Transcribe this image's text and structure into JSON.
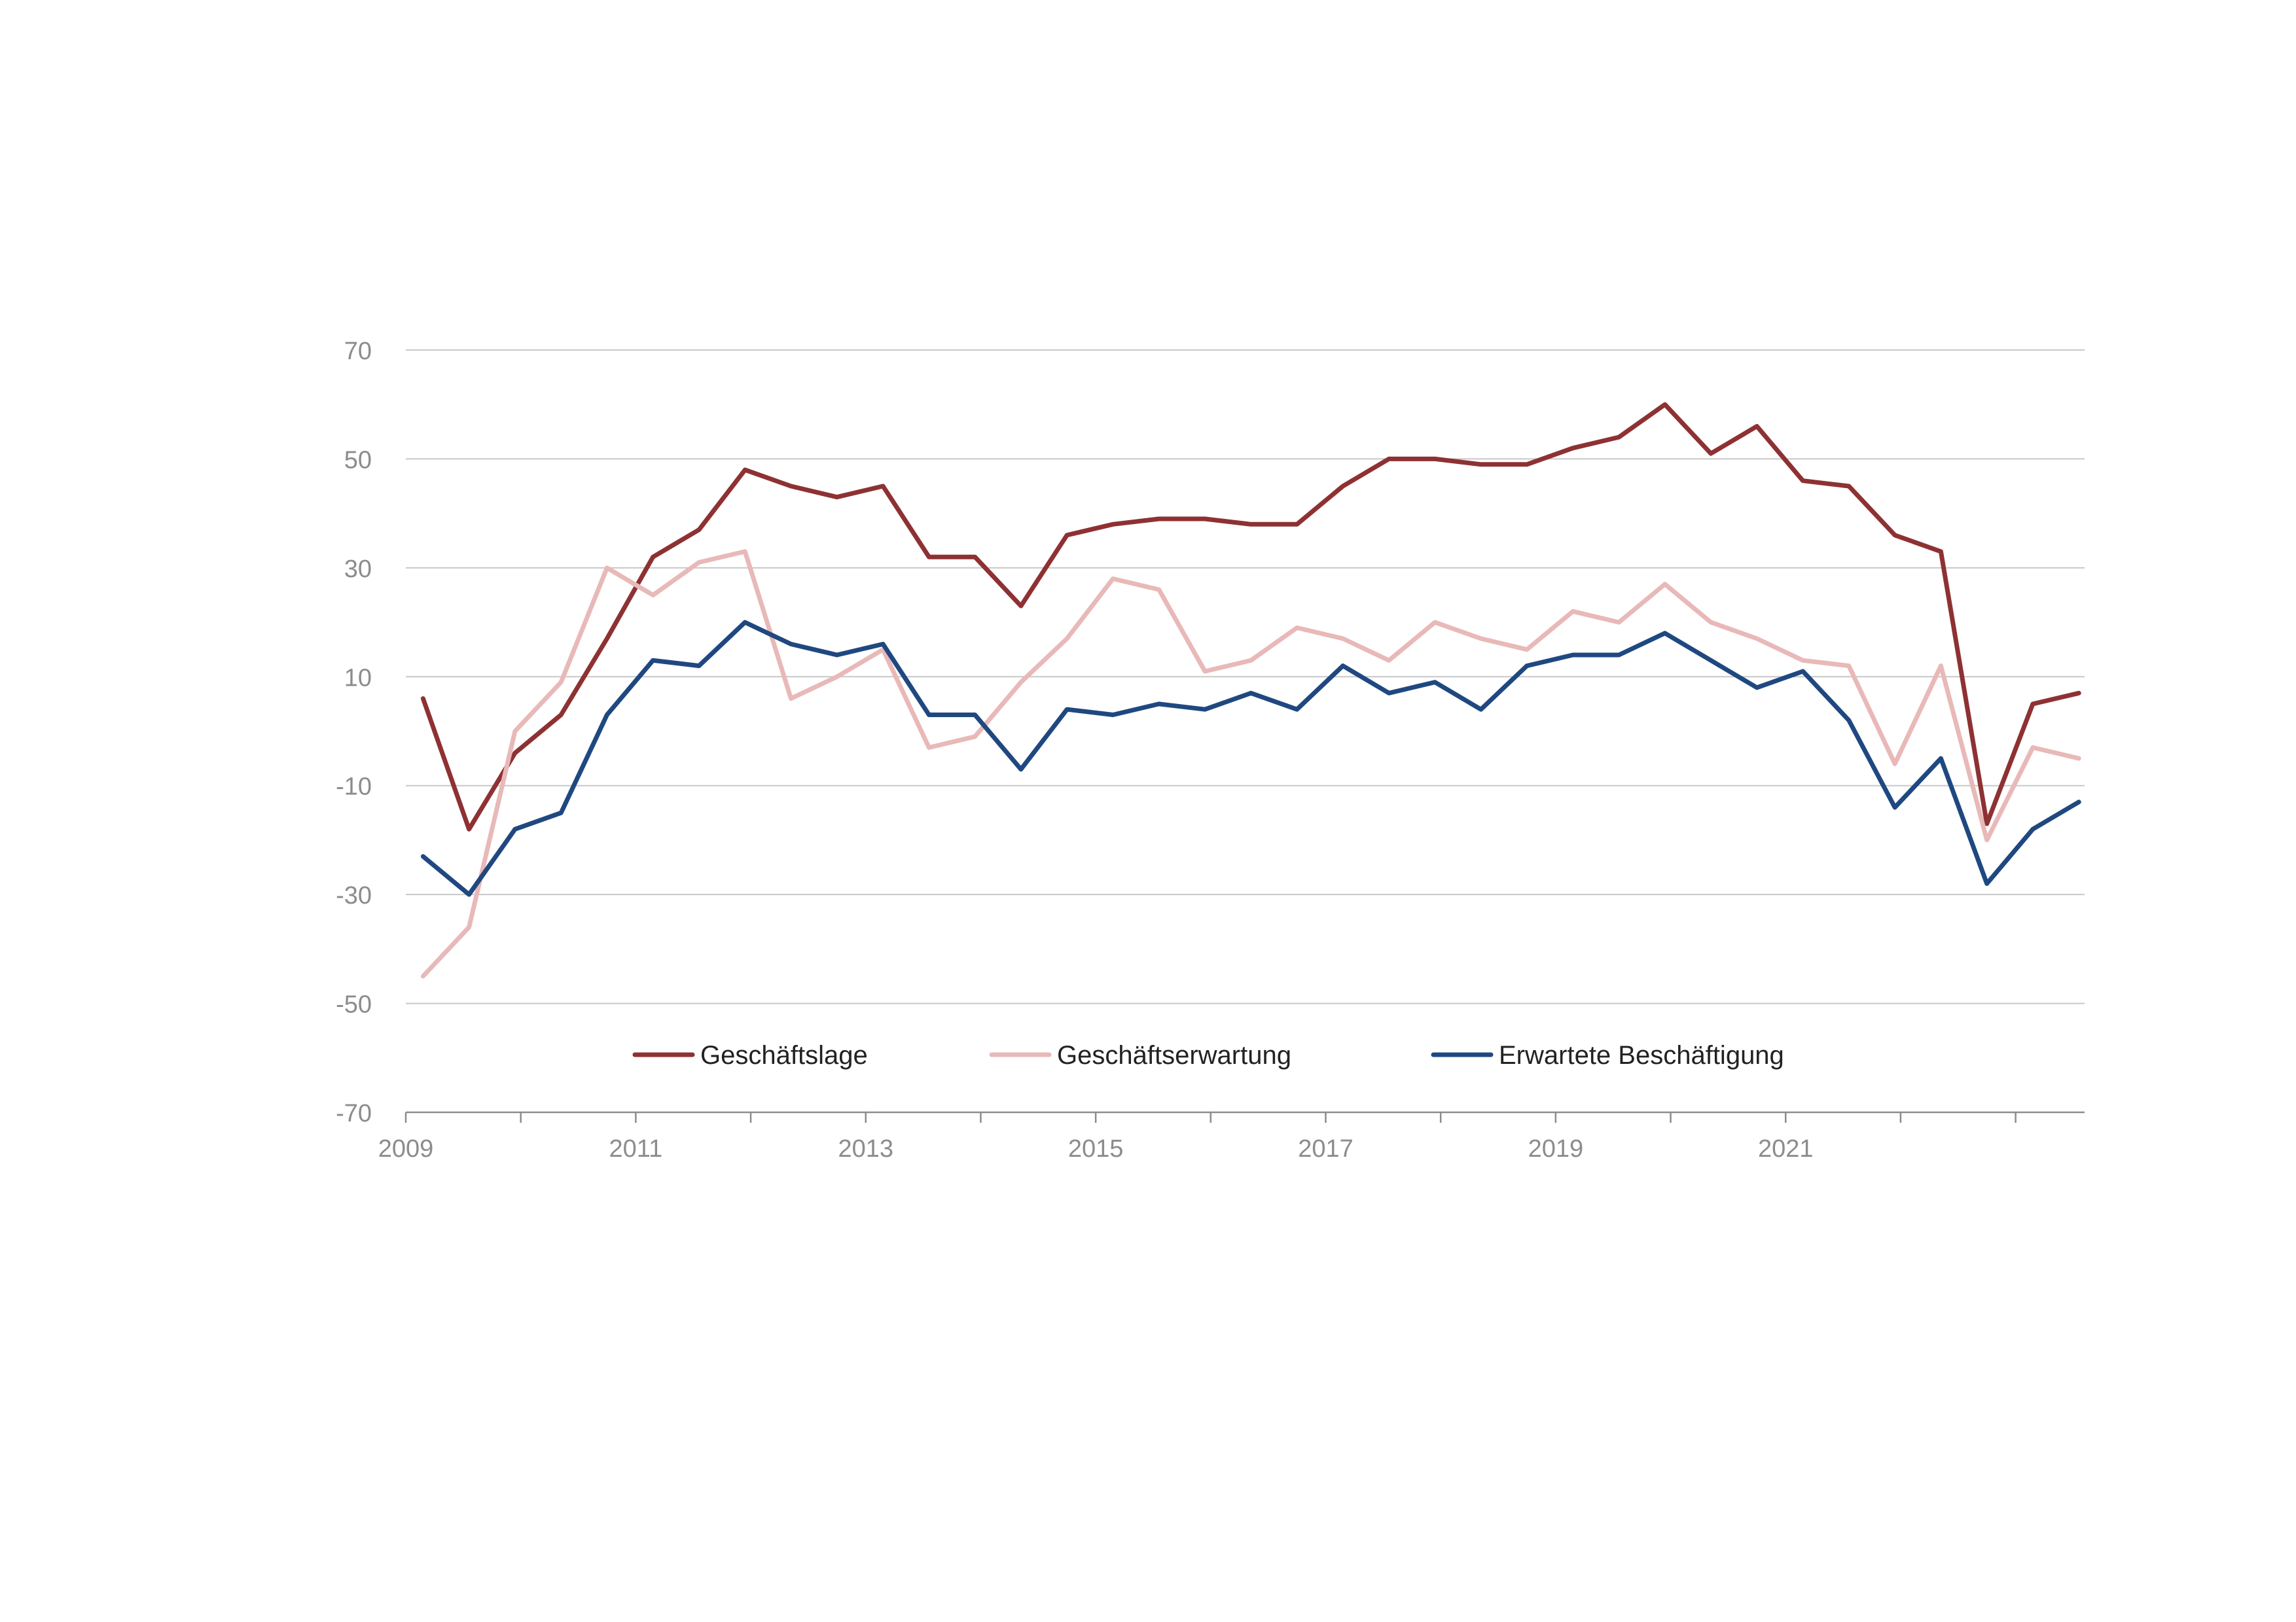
{
  "chart_data": {
    "type": "line",
    "title": "",
    "xlabel": "",
    "ylabel": "",
    "ylim": [
      -70,
      70
    ],
    "yticks": [
      70,
      50,
      30,
      10,
      -10,
      -30,
      -50,
      -70
    ],
    "xlim": [
      2009,
      2023.6
    ],
    "xticks": [
      "2009",
      "2011",
      "2013",
      "2015",
      "2017",
      "2019",
      "2021"
    ],
    "grid": "horizontal",
    "legend_position": "bottom-inside",
    "x": [
      2009.15,
      2009.55,
      2009.95,
      2010.35,
      2010.75,
      2011.15,
      2011.55,
      2011.95,
      2012.35,
      2012.75,
      2013.15,
      2013.55,
      2013.95,
      2014.35,
      2014.75,
      2015.15,
      2015.55,
      2015.95,
      2016.35,
      2016.75,
      2017.15,
      2017.55,
      2017.95,
      2018.35,
      2018.75,
      2019.15,
      2019.55,
      2019.95,
      2020.35,
      2020.75,
      2021.15,
      2021.55,
      2021.95,
      2022.35,
      2022.75,
      2023.15,
      2023.55
    ],
    "series": [
      {
        "name": "Geschäftslage",
        "color": "#8e3133",
        "values": [
          6,
          -18,
          -4,
          3,
          17,
          32,
          37,
          48,
          45,
          43,
          45,
          32,
          32,
          23,
          36,
          38,
          39,
          39,
          38,
          38,
          45,
          50,
          50,
          49,
          49,
          52,
          54,
          60,
          51,
          56,
          46,
          45,
          36,
          33,
          -17,
          5,
          7
        ]
      },
      {
        "name": "Geschäftserwartung",
        "color": "#e8b9b8",
        "values": [
          -45,
          -36,
          0,
          9,
          30,
          25,
          31,
          33,
          6,
          10,
          15,
          -3,
          -1,
          9,
          17,
          28,
          26,
          11,
          13,
          19,
          17,
          13,
          20,
          17,
          15,
          22,
          20,
          27,
          20,
          17,
          13,
          12,
          -6,
          12,
          -20,
          -3,
          -5
        ]
      },
      {
        "name": "Erwartete Beschäftigung",
        "color": "#1f4880",
        "values": [
          -23,
          -30,
          -18,
          -15,
          3,
          13,
          12,
          20,
          16,
          14,
          16,
          3,
          3,
          -7,
          4,
          3,
          5,
          4,
          7,
          4,
          12,
          7,
          9,
          4,
          12,
          14,
          14,
          18,
          13,
          8,
          11,
          2,
          -14,
          -5,
          -28,
          -18,
          -13
        ]
      }
    ]
  }
}
